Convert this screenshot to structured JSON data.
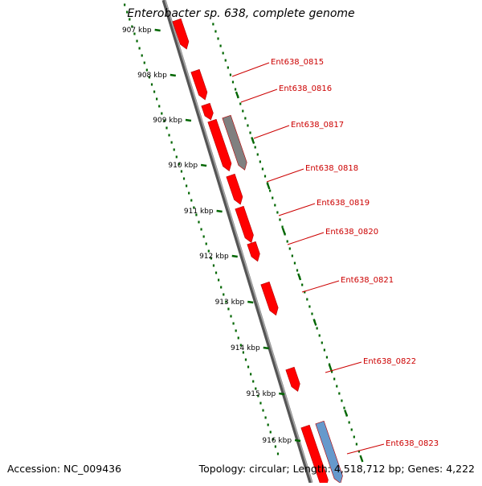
{
  "title": "Enterobacter sp. 638, complete genome",
  "footer": {
    "accession": "Accession: NC_009436",
    "summary": "Topology: circular; Length: 4,518,712 bp; Genes: 4,222"
  },
  "ruler_ticks": [
    {
      "label": "907 kbp",
      "kbp": 907
    },
    {
      "label": "908 kbp",
      "kbp": 908
    },
    {
      "label": "909 kbp",
      "kbp": 909
    },
    {
      "label": "910 kbp",
      "kbp": 910
    },
    {
      "label": "911 kbp",
      "kbp": 911
    },
    {
      "label": "912 kbp",
      "kbp": 912
    },
    {
      "label": "913 kbp",
      "kbp": 913
    },
    {
      "label": "914 kbp",
      "kbp": 914
    },
    {
      "label": "915 kbp",
      "kbp": 915
    },
    {
      "label": "916 kbp",
      "kbp": 916
    }
  ],
  "gene_labels": [
    "Ent638_0815",
    "Ent638_0816",
    "Ent638_0817",
    "Ent638_0818",
    "Ent638_0819",
    "Ent638_0820",
    "Ent638_0821",
    "Ent638_0822",
    "Ent638_0823"
  ],
  "colors": {
    "gene": "#ff0000",
    "gene_dark": "#b30000",
    "pseudogene": "#808080",
    "rna": "#6699cc",
    "label": "#cc0000",
    "ruler": "#006600",
    "backbone": "#888888"
  }
}
